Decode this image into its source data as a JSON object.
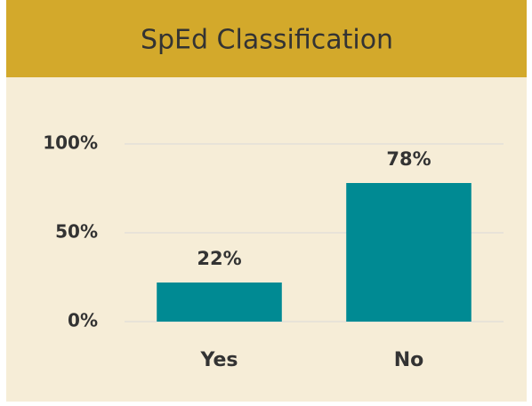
{
  "chart_data": {
    "type": "bar",
    "title": "SpEd Classification",
    "categories": [
      "Yes",
      "No"
    ],
    "values": [
      22,
      78
    ],
    "value_labels": [
      "22%",
      "78%"
    ],
    "color": "#008a93",
    "ylim": [
      0,
      100
    ],
    "yticks": [
      {
        "value": 0,
        "label": "0%"
      },
      {
        "value": 50,
        "label": "50%"
      },
      {
        "value": 100,
        "label": "100%"
      }
    ],
    "grid": true
  }
}
